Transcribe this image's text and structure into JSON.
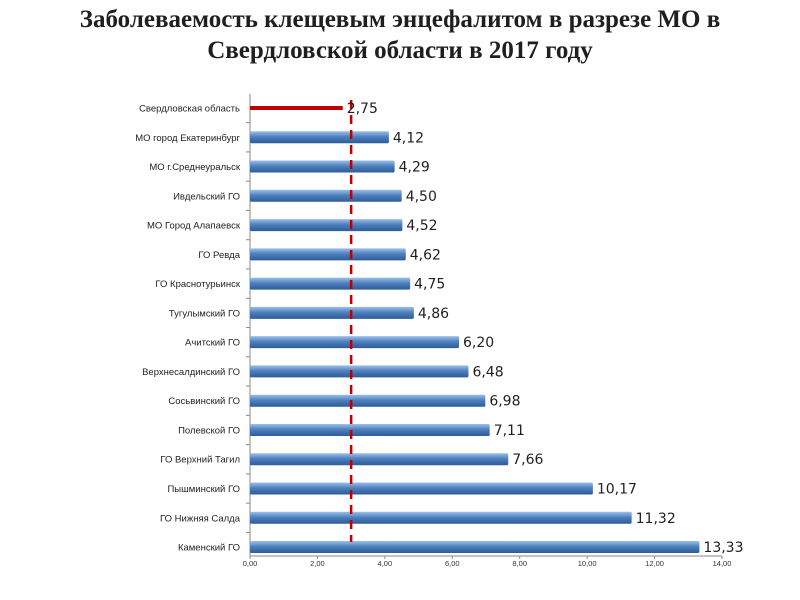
{
  "title": "Заболеваемость клещевым энцефалитом в разрезе МО в Свердловской области в 2017 году",
  "colors": {
    "bar_blue": "#4f81bd",
    "bar_blue_light": "#8fb4e3",
    "bar_blue_dark": "#2c5c9a",
    "bar_red": "#c00000",
    "reference_line": "#c00000"
  },
  "chart_data": {
    "type": "bar",
    "orientation": "horizontal",
    "categories": [
      "Свердловская область",
      "МО город Екатеринбург",
      "МО г.Среднеуральск",
      "Ивдельский ГО",
      "МО Город Алапаевск",
      "ГО Ревда",
      "ГО Краснотурьинск",
      "Тугулымский ГО",
      "Ачитский ГО",
      "Верхнесалдинский ГО",
      "Сосьвинский ГО",
      "Полевской ГО",
      "ГО Верхний Тагил",
      "Пышминский ГО",
      "ГО Нижняя Салда",
      "Каменский ГО"
    ],
    "values": [
      2.75,
      4.12,
      4.29,
      4.5,
      4.52,
      4.62,
      4.75,
      4.86,
      6.2,
      6.48,
      6.98,
      7.11,
      7.66,
      10.17,
      11.32,
      13.33
    ],
    "value_labels": [
      "2,75",
      "4,12",
      "4,29",
      "4,50",
      "4,52",
      "4,62",
      "4,75",
      "4,86",
      "6,20",
      "6,48",
      "6,98",
      "7,11",
      "7,66",
      "10,17",
      "11,32",
      "13,33"
    ],
    "highlight_index": 0,
    "xlim": [
      0,
      14
    ],
    "x_ticks": [
      0,
      2,
      4,
      6,
      8,
      10,
      12,
      14
    ],
    "x_tick_labels": [
      "0,00",
      "2,00",
      "4,00",
      "6,00",
      "8,00",
      "10,00",
      "12,00",
      "14,00"
    ],
    "reference_line_value": 3.0,
    "reference_line_style": "dashed",
    "grid": false,
    "legend": false,
    "xlabel": "",
    "ylabel": ""
  }
}
